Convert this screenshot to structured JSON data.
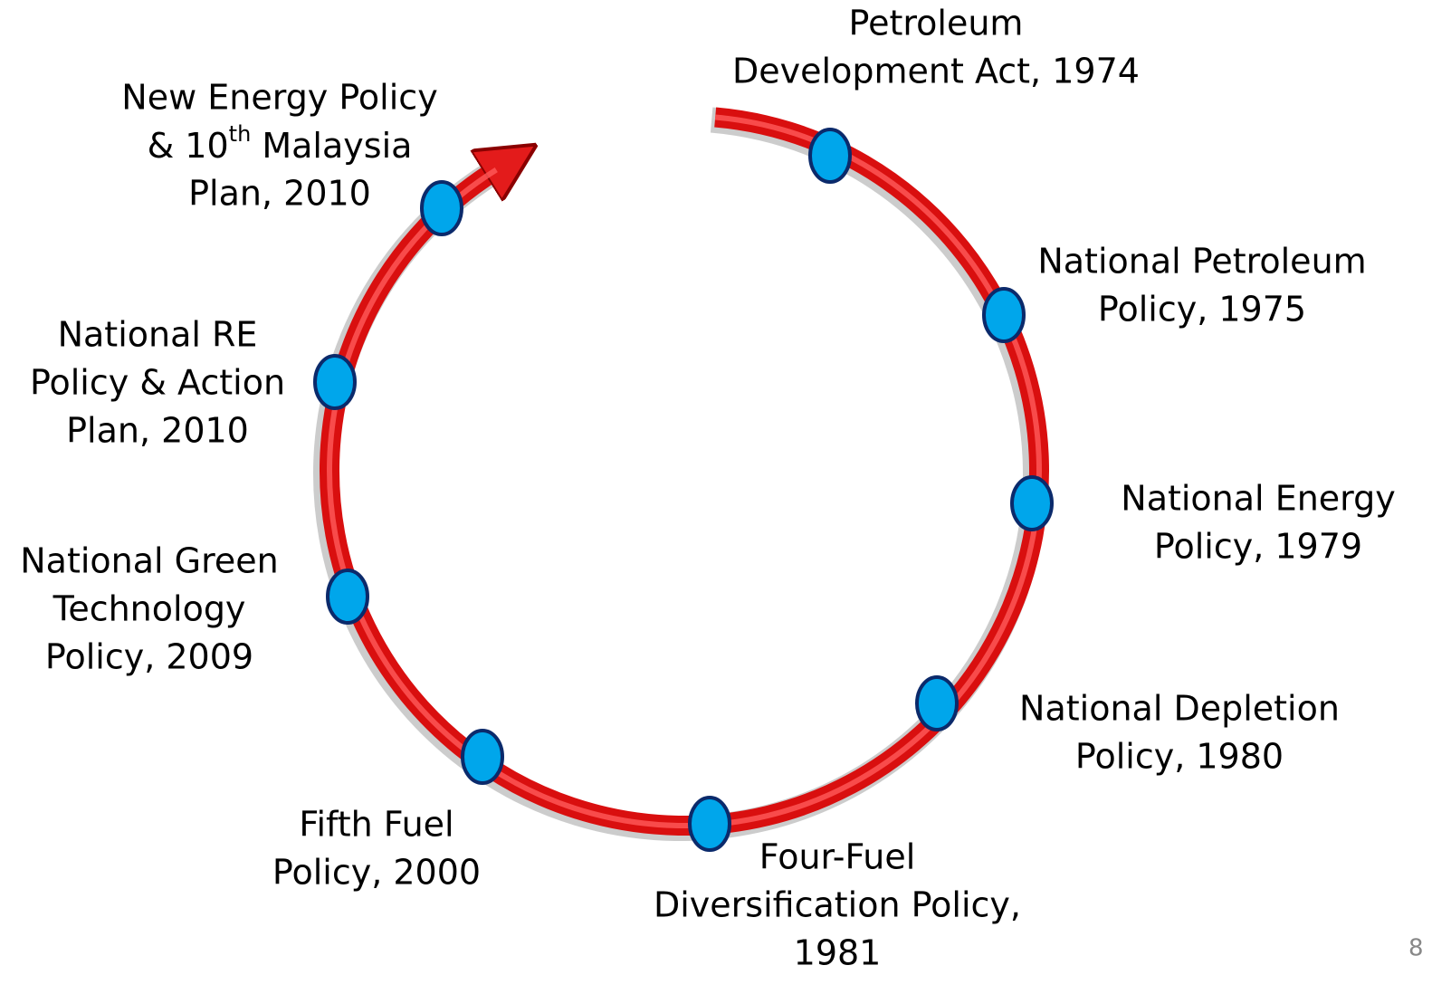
{
  "nodes": [
    {
      "lines": [
        "Petroleum",
        "Development Act, 1974"
      ]
    },
    {
      "lines": [
        "National Petroleum",
        "Policy, 1975"
      ]
    },
    {
      "lines": [
        "National Energy",
        "Policy, 1979"
      ]
    },
    {
      "lines": [
        "National Depletion",
        "Policy, 1980"
      ]
    },
    {
      "lines": [
        "Four-Fuel",
        "Diversification Policy,",
        "1981"
      ]
    },
    {
      "lines": [
        "Fifth Fuel",
        "Policy, 2000"
      ]
    },
    {
      "lines": [
        "National Green",
        "Technology",
        "Policy, 2009"
      ]
    },
    {
      "lines": [
        "National RE",
        "Policy & Action",
        "Plan, 2010"
      ]
    },
    {
      "lines": [
        "New Energy Policy",
        [
          "& 10",
          "th",
          " Malaysia"
        ],
        "Plan, 2010"
      ]
    }
  ],
  "page_number": "8"
}
